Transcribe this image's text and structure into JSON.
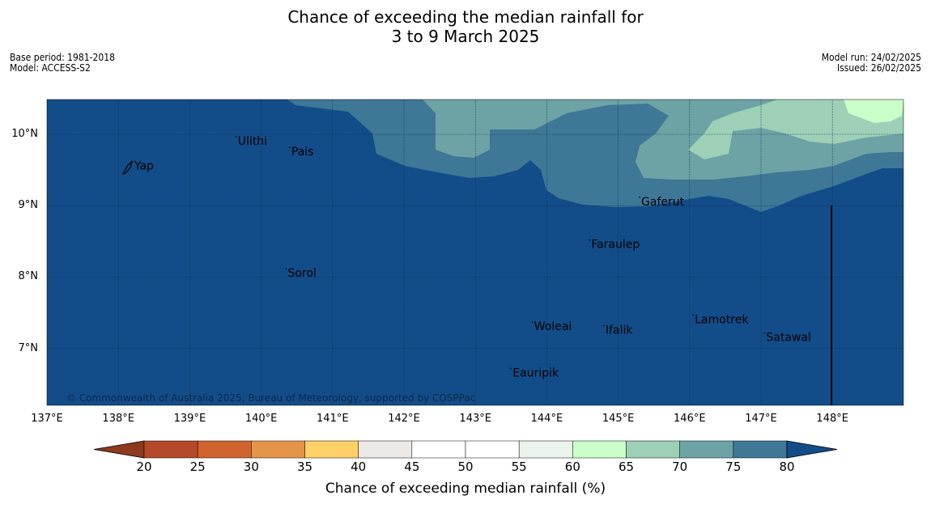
{
  "title_line1": "Chance of exceeding the median rainfall for",
  "title_line2": "3 to 9 March 2025",
  "meta_left": [
    "Base period: 1981-2018",
    "Model: ACCESS-S2"
  ],
  "meta_right": [
    "Model run: 24/02/2025",
    "Issued: 26/02/2025"
  ],
  "copyright": "© Commonwealth of Australia 2025, Bureau of Meteorology, supported by COSPPac",
  "map": {
    "lon_range": [
      137,
      149
    ],
    "lat_range": [
      6.2,
      10.5
    ],
    "lon_ticks": [
      "137°E",
      "138°E",
      "139°E",
      "140°E",
      "141°E",
      "142°E",
      "143°E",
      "144°E",
      "145°E",
      "146°E",
      "147°E",
      "148°E"
    ],
    "lat_ticks": [
      "10°N",
      "9°N",
      "8°N",
      "7°N"
    ],
    "places": [
      {
        "name": "Yap",
        "lon": 138.2,
        "lat": 9.55
      },
      {
        "name": "Ulithi",
        "lon": 139.65,
        "lat": 9.9
      },
      {
        "name": "Pais",
        "lon": 140.4,
        "lat": 9.75
      },
      {
        "name": "Gaferut",
        "lon": 145.3,
        "lat": 9.05
      },
      {
        "name": "Faraulep",
        "lon": 144.6,
        "lat": 8.45
      },
      {
        "name": "Sorol",
        "lon": 140.35,
        "lat": 8.05
      },
      {
        "name": "Woleai",
        "lon": 143.8,
        "lat": 7.3
      },
      {
        "name": "Ifalik",
        "lon": 144.8,
        "lat": 7.25
      },
      {
        "name": "Lamotrek",
        "lon": 146.05,
        "lat": 7.4
      },
      {
        "name": "Satawal",
        "lon": 147.05,
        "lat": 7.15
      },
      {
        "name": "Eauripik",
        "lon": 143.5,
        "lat": 6.65
      }
    ],
    "fill_colors": {
      "above_80": "#134d89",
      "75_80": "#3f7797",
      "70_75": "#6da3a4",
      "65_70": "#9dd0b6",
      "60_65": "#caffc9"
    }
  },
  "colorbar": {
    "title": "Chance of exceeding median rainfall (%)",
    "labels": [
      "20",
      "25",
      "30",
      "35",
      "40",
      "45",
      "50",
      "55",
      "60",
      "65",
      "70",
      "75",
      "80"
    ],
    "colors": [
      "#8d3a1f",
      "#b44a2a",
      "#d1642e",
      "#e5954a",
      "#fdd167",
      "#ece9e6",
      "#ffffff",
      "#ffffff",
      "#ebf4ec",
      "#caffc9",
      "#9dd0b6",
      "#6da3a4",
      "#3f7797",
      "#134d89"
    ]
  }
}
